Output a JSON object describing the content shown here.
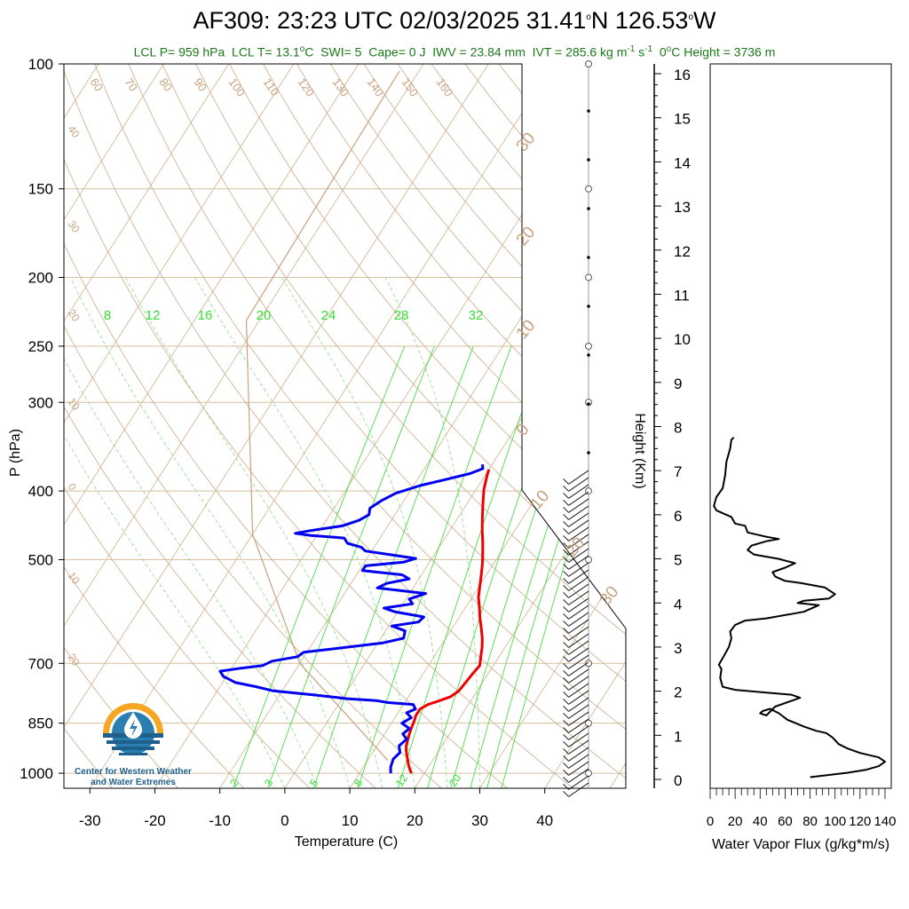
{
  "header": {
    "title": "AF309: 23:23 UTC 02/03/2025  31.41",
    "title_deg1": "o",
    "title_lat_suffix": "N 126.53",
    "title_deg2": "o",
    "title_lon_suffix": "W",
    "stats_part1": "LCL P= 959 hPa  LCL T= 13.1",
    "stats_deg": "o",
    "stats_part2": "C  SWI= 5  Cape= 0 J  IWV = 23.84 mm  IVT = 285.6 kg m",
    "stats_sup1": "-1",
    "stats_part3": " s",
    "stats_sup2": "-1",
    "stats_part4": "  0",
    "stats_deg2": "o",
    "stats_part5": "C Height = 3736 m"
  },
  "logo": {
    "line1": "Center for Western Weather",
    "line2": "and Water Extremes"
  },
  "colors": {
    "temperature": "#ee0000",
    "dewpoint": "#0000ee",
    "isotherm": "#d8bfa0",
    "dry_adiabat": "#c8aa88",
    "mixing_ratio": "#33dd33",
    "stats_text": "#1a7a1a"
  },
  "chart_data": [
    {
      "type": "line",
      "name": "skew-t",
      "xlabel": "Temperature (C)",
      "ylabel": "P (hPa)",
      "xlim": [
        -34,
        52
      ],
      "ylim": [
        1050,
        100
      ],
      "yscale": "log",
      "x_ticks": [
        "-30",
        "-20",
        "-10",
        "0",
        "10",
        "20",
        "30",
        "40"
      ],
      "y_ticks": [
        "100",
        "150",
        "200",
        "250",
        "300",
        "400",
        "500",
        "700",
        "850",
        "1000"
      ],
      "isotherm_labels": [
        "30",
        "20",
        "10",
        "0",
        "-10",
        "-20",
        "-30",
        "-40",
        "-50",
        "-60",
        "-70",
        "-80",
        "-90",
        "-100",
        "-110",
        "-120",
        "-130",
        "-140",
        "-150",
        "-160"
      ],
      "left_isotherm_labels": [
        "40",
        "30",
        "20",
        "10",
        "0",
        "10",
        "20"
      ],
      "mixing_ratio_labels_top": [
        "8",
        "12",
        "16",
        "20",
        "24",
        "28",
        "32"
      ],
      "mixing_ratio_labels_bottom": [
        "2",
        "3",
        "5",
        "8",
        "12",
        "20"
      ],
      "right_isotherm_labels": [
        "30",
        "20",
        "10",
        "0",
        "10",
        "20",
        "30"
      ],
      "series": [
        {
          "name": "temperature",
          "points": [
            [
              18.0,
              1000
            ],
            [
              17.5,
              990
            ],
            [
              16.8,
              975
            ],
            [
              16.2,
              960
            ],
            [
              15.6,
              945
            ],
            [
              15.0,
              930
            ],
            [
              14.5,
              915
            ],
            [
              14.2,
              900
            ],
            [
              13.8,
              880
            ],
            [
              13.5,
              860
            ],
            [
              13.3,
              845
            ],
            [
              13.0,
              830
            ],
            [
              13.0,
              812
            ],
            [
              13.8,
              800
            ],
            [
              15.2,
              790
            ],
            [
              16.5,
              780
            ],
            [
              17.2,
              765
            ],
            [
              17.4,
              745
            ],
            [
              17.6,
              725
            ],
            [
              17.9,
              705
            ],
            [
              17.2,
              685
            ],
            [
              16.5,
              665
            ],
            [
              15.6,
              645
            ],
            [
              14.5,
              625
            ],
            [
              13.3,
              605
            ],
            [
              12.2,
              585
            ],
            [
              11.0,
              565
            ],
            [
              10.1,
              545
            ],
            [
              9.2,
              525
            ],
            [
              8.2,
              505
            ],
            [
              7.2,
              488
            ],
            [
              6.2,
              472
            ],
            [
              5.0,
              455
            ],
            [
              4.0,
              440
            ],
            [
              3.0,
              425
            ],
            [
              2.0,
              410
            ],
            [
              1.2,
              398
            ],
            [
              0.7,
              388
            ],
            [
              0.3,
              380
            ],
            [
              0.0,
              373
            ]
          ]
        },
        {
          "name": "dewpoint",
          "points": [
            [
              14.8,
              1000
            ],
            [
              14.2,
              980
            ],
            [
              13.8,
              955
            ],
            [
              14.2,
              935
            ],
            [
              13.4,
              915
            ],
            [
              13.9,
              895
            ],
            [
              12.8,
              880
            ],
            [
              13.3,
              865
            ],
            [
              11.6,
              850
            ],
            [
              12.5,
              835
            ],
            [
              11.3,
              822
            ],
            [
              12.3,
              812
            ],
            [
              11.5,
              800
            ],
            [
              7.5,
              795
            ],
            [
              5.5,
              790
            ],
            [
              0.8,
              785
            ],
            [
              -5.0,
              775
            ],
            [
              -11.5,
              765
            ],
            [
              -14.5,
              755
            ],
            [
              -18.0,
              745
            ],
            [
              -20.5,
              730
            ],
            [
              -21.5,
              718
            ],
            [
              -19.0,
              712
            ],
            [
              -15.5,
              705
            ],
            [
              -14.5,
              695
            ],
            [
              -11.0,
              685
            ],
            [
              -10.5,
              675
            ],
            [
              -6.5,
              668
            ],
            [
              0.8,
              655
            ],
            [
              3.5,
              645
            ],
            [
              3.0,
              630
            ],
            [
              0.5,
              620
            ],
            [
              4.2,
              612
            ],
            [
              4.5,
              602
            ],
            [
              -0.5,
              592
            ],
            [
              -2.5,
              585
            ],
            [
              1.5,
              577
            ],
            [
              0.5,
              568
            ],
            [
              2.5,
              558
            ],
            [
              -5.5,
              548
            ],
            [
              -4.5,
              540
            ],
            [
              -1.5,
              532
            ],
            [
              -3.0,
              525
            ],
            [
              -9.5,
              518
            ],
            [
              -9.5,
              510
            ],
            [
              -4.0,
              504
            ],
            [
              -2.5,
              498
            ],
            [
              -6.0,
              493
            ],
            [
              -11.0,
              486
            ],
            [
              -12.0,
              480
            ],
            [
              -14.5,
              474
            ],
            [
              -15.5,
              466
            ],
            [
              -21.0,
              462
            ],
            [
              -23.5,
              459
            ],
            [
              -21.5,
              455
            ],
            [
              -17.0,
              448
            ],
            [
              -15.0,
              440
            ],
            [
              -14.0,
              432
            ],
            [
              -14.5,
              423
            ],
            [
              -13.5,
              413
            ],
            [
              -12.0,
              403
            ],
            [
              -9.0,
              393
            ],
            [
              -5.5,
              385
            ],
            [
              -2.5,
              378
            ],
            [
              -1.0,
              372
            ],
            [
              -1.5,
              367
            ]
          ]
        }
      ]
    },
    {
      "type": "line",
      "name": "height-axis",
      "ylabel": "Height (Km)",
      "ylim": [
        0,
        16
      ],
      "y_ticks": [
        "0",
        "1",
        "2",
        "3",
        "4",
        "5",
        "6",
        "7",
        "8",
        "9",
        "10",
        "11",
        "12",
        "13",
        "14",
        "15",
        "16"
      ]
    },
    {
      "type": "line",
      "name": "water-vapor-flux",
      "xlabel": "Water Vapor Flux (g/kg*m/s)",
      "xlim": [
        0,
        145
      ],
      "ylim": [
        0,
        16
      ],
      "x_ticks": [
        "0",
        "20",
        "40",
        "60",
        "80",
        "100",
        "120",
        "140"
      ],
      "series": [
        {
          "name": "flux",
          "points": [
            [
              80,
              0.05
            ],
            [
              95,
              0.1
            ],
            [
              110,
              0.15
            ],
            [
              125,
              0.22
            ],
            [
              135,
              0.3
            ],
            [
              140,
              0.4
            ],
            [
              135,
              0.5
            ],
            [
              120,
              0.6
            ],
            [
              110,
              0.7
            ],
            [
              103,
              0.8
            ],
            [
              98,
              0.95
            ],
            [
              93,
              1.05
            ],
            [
              85,
              1.1
            ],
            [
              75,
              1.2
            ],
            [
              62,
              1.35
            ],
            [
              55,
              1.5
            ],
            [
              48,
              1.6
            ],
            [
              42,
              1.55
            ],
            [
              40,
              1.5
            ],
            [
              45,
              1.45
            ],
            [
              52,
              1.65
            ],
            [
              65,
              1.78
            ],
            [
              72,
              1.85
            ],
            [
              65,
              1.92
            ],
            [
              40,
              1.98
            ],
            [
              20,
              2.03
            ],
            [
              10,
              2.1
            ],
            [
              8,
              2.3
            ],
            [
              9,
              2.5
            ],
            [
              7,
              2.6
            ],
            [
              10,
              2.75
            ],
            [
              15,
              3.0
            ],
            [
              17,
              3.2
            ],
            [
              16,
              3.35
            ],
            [
              20,
              3.5
            ],
            [
              28,
              3.6
            ],
            [
              45,
              3.65
            ],
            [
              75,
              3.8
            ],
            [
              87,
              3.95
            ],
            [
              70,
              4.0
            ],
            [
              75,
              4.05
            ],
            [
              95,
              4.1
            ],
            [
              100,
              4.2
            ],
            [
              92,
              4.35
            ],
            [
              73,
              4.45
            ],
            [
              60,
              4.5
            ],
            [
              52,
              4.6
            ],
            [
              50,
              4.7
            ],
            [
              60,
              4.8
            ],
            [
              68,
              4.9
            ],
            [
              55,
              5.0
            ],
            [
              35,
              5.1
            ],
            [
              30,
              5.2
            ],
            [
              33,
              5.3
            ],
            [
              45,
              5.4
            ],
            [
              55,
              5.45
            ],
            [
              45,
              5.5
            ],
            [
              30,
              5.6
            ],
            [
              28,
              5.75
            ],
            [
              20,
              5.8
            ],
            [
              17,
              5.95
            ],
            [
              5,
              6.1
            ],
            [
              3,
              6.2
            ],
            [
              5,
              6.4
            ],
            [
              10,
              6.6
            ],
            [
              12,
              6.9
            ],
            [
              13,
              7.2
            ],
            [
              16,
              7.5
            ],
            [
              17,
              7.7
            ],
            [
              19,
              7.75
            ]
          ]
        }
      ]
    }
  ]
}
